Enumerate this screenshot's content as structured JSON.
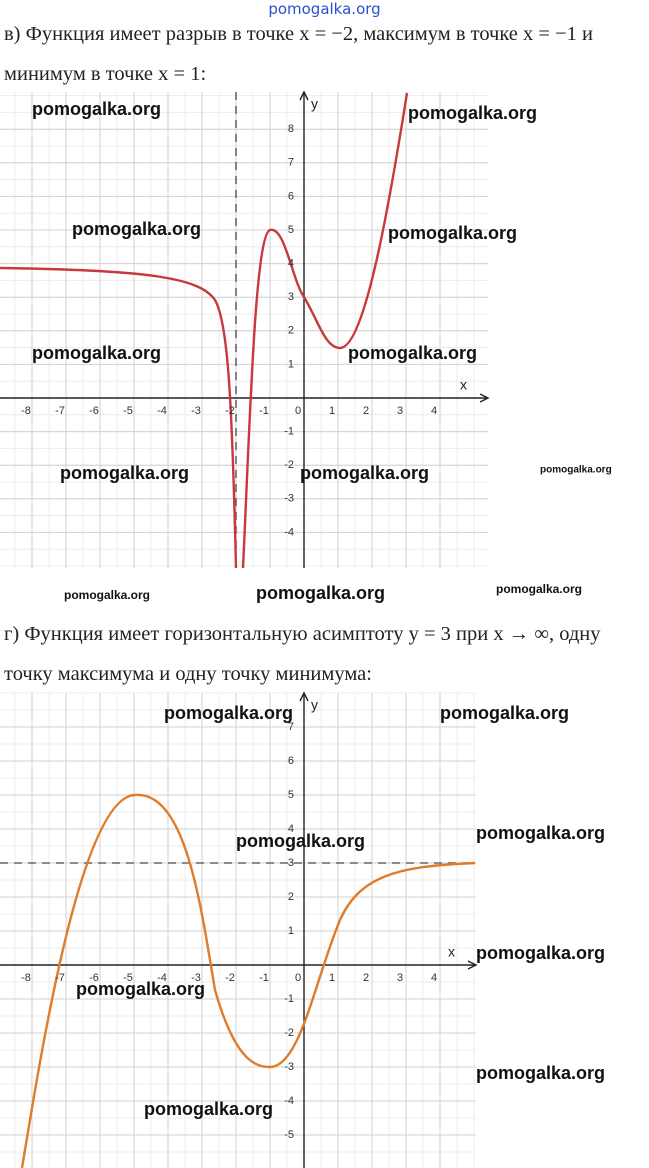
{
  "header": {
    "site": "pomogalka.org"
  },
  "problems": [
    {
      "text": "в) Функция имеет разрыв в точке x = −2, максимум в точке x = −1 и минимум в точке x = 1:",
      "graph": {
        "x_label": "x",
        "y_label": "y",
        "xticks": [
          -8,
          -7,
          -6,
          -5,
          -4,
          -3,
          -2,
          -1,
          0,
          1,
          2,
          3,
          4
        ],
        "yticks": [
          -4,
          -3,
          -2,
          -1,
          1,
          2,
          3,
          4,
          5,
          6,
          7,
          8
        ]
      }
    },
    {
      "text": "г) Функция имеет горизонтальную асимптоту y = 3 при x → ∞, одну точку максимума и одну точку минимума:",
      "graph": {
        "x_label": "x",
        "y_label": "y",
        "xticks": [
          -8,
          -7,
          -6,
          -5,
          -4,
          -3,
          -2,
          -1,
          0,
          1,
          2,
          3,
          4
        ],
        "yticks": [
          -5,
          -4,
          -3,
          -2,
          -1,
          1,
          2,
          3,
          4,
          5,
          6,
          7
        ]
      }
    }
  ],
  "watermarks": [
    "pomogalka.org",
    "pomogalka.org",
    "pomogalka.org",
    "pomogalka.org",
    "pomogalka.org",
    "pomogalka.org",
    "pomogalka.org",
    "pomogalka.org",
    "pomogalka.org",
    "pomogalka.org",
    "pomogalka.org",
    "pomogalka.org",
    "pomogalka.org",
    "pomogalka.org",
    "pomogalka.org",
    "pomogalka.org",
    "pomogalka.org",
    "pomogalka.org",
    "pomogalka.org",
    "pomogalka.org"
  ]
}
